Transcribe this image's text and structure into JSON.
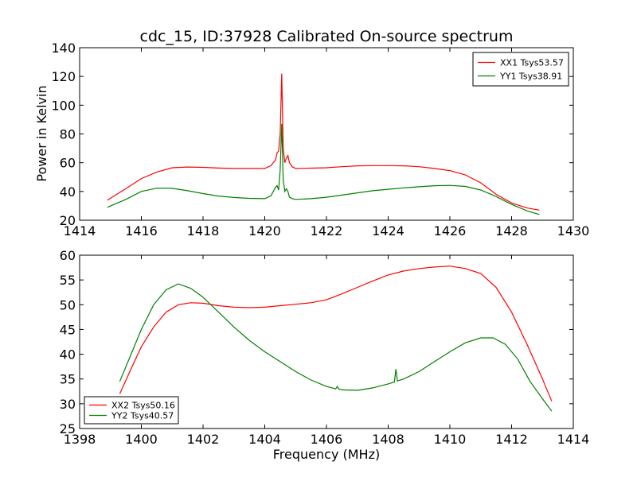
{
  "figure": {
    "title": "cdc_15, ID:37928 Calibrated On-source spectrum",
    "xlabel": "Frequency (MHz)",
    "ylabel": "Power in Kelvin"
  },
  "chart_data": [
    {
      "type": "line",
      "xlim": [
        1414,
        1430
      ],
      "ylim": [
        20,
        140
      ],
      "xticks": [
        1414,
        1416,
        1418,
        1420,
        1422,
        1424,
        1426,
        1428,
        1430
      ],
      "yticks": [
        20,
        40,
        60,
        80,
        100,
        120,
        140
      ],
      "grid": false,
      "legend_position": "top-right",
      "series": [
        {
          "name": "XX1 Tsys53.57",
          "color": "#ff0000",
          "x": [
            1414.9,
            1415.5,
            1416.0,
            1416.5,
            1417.0,
            1417.5,
            1418.0,
            1418.5,
            1419.0,
            1419.5,
            1420.0,
            1420.2,
            1420.35,
            1420.4,
            1420.45,
            1420.5,
            1420.55,
            1420.6,
            1420.65,
            1420.7,
            1420.75,
            1420.8,
            1420.9,
            1421.0,
            1421.5,
            1422.0,
            1422.5,
            1423.0,
            1423.5,
            1424.0,
            1424.5,
            1425.0,
            1425.5,
            1426.0,
            1426.5,
            1427.0,
            1427.5,
            1428.0,
            1428.5,
            1428.9
          ],
          "y": [
            34,
            42,
            49,
            53.5,
            56.5,
            57,
            56.8,
            56.3,
            56,
            56,
            56,
            58,
            62,
            67,
            68,
            80,
            122,
            70,
            60,
            63,
            65,
            60,
            57,
            56,
            56.2,
            56.5,
            57.2,
            57.8,
            58,
            58,
            57.8,
            57.2,
            56,
            54.5,
            51.5,
            46,
            38,
            32,
            28.5,
            27
          ]
        },
        {
          "name": "YY1 Tsys38.91",
          "color": "#008000",
          "x": [
            1414.9,
            1415.5,
            1416.0,
            1416.5,
            1417.0,
            1417.5,
            1418.0,
            1418.5,
            1419.0,
            1419.5,
            1420.0,
            1420.2,
            1420.35,
            1420.4,
            1420.45,
            1420.5,
            1420.55,
            1420.6,
            1420.65,
            1420.7,
            1420.75,
            1420.8,
            1420.9,
            1421.0,
            1421.5,
            1422.0,
            1422.5,
            1423.0,
            1423.5,
            1424.0,
            1424.5,
            1425.0,
            1425.5,
            1426.0,
            1426.5,
            1427.0,
            1427.5,
            1428.0,
            1428.5,
            1428.9
          ],
          "y": [
            29,
            34.5,
            40,
            42.3,
            42.2,
            40.5,
            38.5,
            36.8,
            35.8,
            35.2,
            35,
            37,
            43,
            44,
            41,
            55,
            87,
            48,
            40,
            42,
            40,
            36,
            35,
            34.5,
            35,
            36,
            37.5,
            39,
            40.5,
            41.5,
            42.5,
            43.3,
            44,
            44.2,
            43.5,
            41,
            36.5,
            31,
            26.5,
            24
          ]
        }
      ]
    },
    {
      "type": "line",
      "xlim": [
        1398,
        1414
      ],
      "ylim": [
        25,
        60
      ],
      "xticks": [
        1398,
        1400,
        1402,
        1404,
        1406,
        1408,
        1410,
        1412,
        1414
      ],
      "yticks": [
        25,
        30,
        35,
        40,
        45,
        50,
        55,
        60
      ],
      "grid": false,
      "legend_position": "bottom-left",
      "series": [
        {
          "name": "XX2 Tsys50.16",
          "color": "#ff0000",
          "x": [
            1399.3,
            1399.7,
            1400.0,
            1400.4,
            1400.8,
            1401.2,
            1401.6,
            1402.0,
            1402.5,
            1403.0,
            1403.5,
            1404.0,
            1404.5,
            1405.0,
            1405.5,
            1406.0,
            1406.5,
            1407.0,
            1407.5,
            1408.0,
            1408.5,
            1409.0,
            1409.5,
            1410.0,
            1410.5,
            1411.0,
            1411.5,
            1412.0,
            1412.5,
            1413.0,
            1413.3
          ],
          "y": [
            32,
            37.5,
            41.5,
            45.5,
            48.5,
            50,
            50.4,
            50.3,
            49.8,
            49.5,
            49.4,
            49.5,
            49.8,
            50.1,
            50.4,
            51,
            52.2,
            53.5,
            54.8,
            56,
            56.8,
            57.3,
            57.6,
            57.8,
            57.3,
            56.3,
            53.5,
            48.5,
            42,
            35,
            30.5
          ]
        },
        {
          "name": "YY2 Tsys40.57",
          "color": "#008000",
          "x": [
            1399.3,
            1399.7,
            1400.0,
            1400.4,
            1400.8,
            1401.2,
            1401.6,
            1402.0,
            1402.5,
            1403.0,
            1403.5,
            1404.0,
            1404.5,
            1405.0,
            1405.5,
            1406.0,
            1406.3,
            1406.35,
            1406.4,
            1406.5,
            1407.0,
            1407.5,
            1408.0,
            1408.2,
            1408.25,
            1408.3,
            1408.5,
            1409.0,
            1409.5,
            1410.0,
            1410.5,
            1411.0,
            1411.4,
            1411.8,
            1412.2,
            1412.6,
            1413.0,
            1413.3
          ],
          "y": [
            34.5,
            40.5,
            45,
            50,
            53,
            54.2,
            53.3,
            51.5,
            48.5,
            45.5,
            42.8,
            40.5,
            38.5,
            36.5,
            34.8,
            33.5,
            33,
            33.5,
            33,
            32.8,
            32.7,
            33.2,
            34,
            34.4,
            37,
            34.6,
            35,
            36.5,
            38.5,
            40.5,
            42.3,
            43.3,
            43.3,
            42,
            39,
            34.5,
            31,
            28.5
          ]
        }
      ]
    }
  ]
}
